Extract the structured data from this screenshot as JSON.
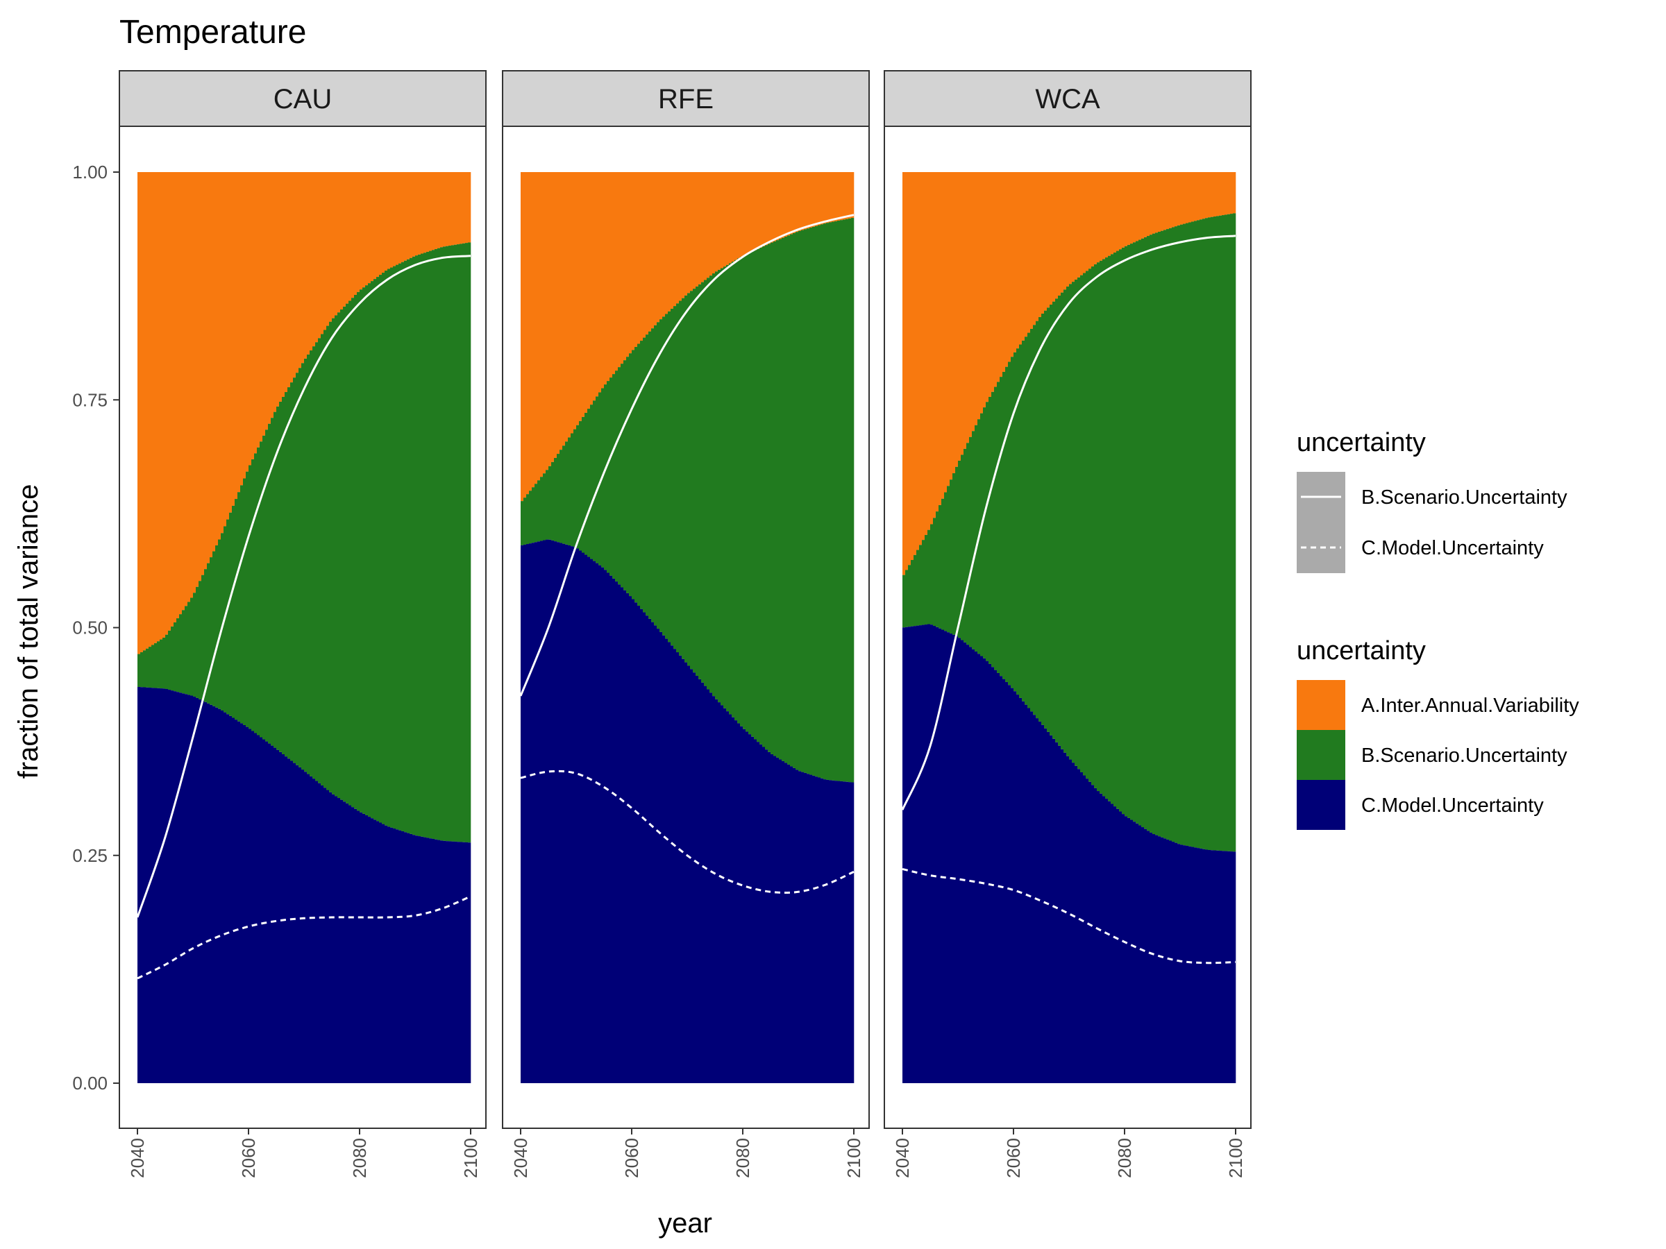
{
  "chart_data": {
    "type": "area",
    "title": "Temperature",
    "xlabel": "year",
    "ylabel": "fraction of total variance",
    "x_ticks": [
      2040,
      2060,
      2080,
      2100
    ],
    "y_ticks": [
      "0.00",
      "0.25",
      "0.50",
      "0.75",
      "1.00"
    ],
    "xlim": [
      2040,
      2100
    ],
    "ylim": [
      0,
      1
    ],
    "grid": false,
    "legend_position": "right",
    "colors": {
      "A.Inter.Annual.Variability": "#f8790f",
      "B.Scenario.Uncertainty": "#217b1f",
      "C.Model.Uncertainty": "#000077",
      "line": "#ffffff",
      "strip": "#d3d3d3",
      "legend_key_line": "#aaaaaa"
    },
    "legend_lines": {
      "title": "uncertainty",
      "items": [
        {
          "label": "B.Scenario.Uncertainty",
          "dash": "solid"
        },
        {
          "label": "C.Model.Uncertainty",
          "dash": "dashed"
        }
      ]
    },
    "legend_fill": {
      "title": "uncertainty",
      "items": [
        {
          "label": "A.Inter.Annual.Variability",
          "color": "#f8790f"
        },
        {
          "label": "B.Scenario.Uncertainty",
          "color": "#217b1f"
        },
        {
          "label": "C.Model.Uncertainty",
          "color": "#000077"
        }
      ]
    },
    "x": [
      2040,
      2045,
      2050,
      2055,
      2060,
      2065,
      2070,
      2075,
      2080,
      2085,
      2090,
      2095,
      2100
    ],
    "panels": [
      {
        "name": "CAU",
        "model_top": [
          0.435,
          0.433,
          0.425,
          0.41,
          0.39,
          0.367,
          0.343,
          0.318,
          0.298,
          0.282,
          0.272,
          0.266,
          0.264
        ],
        "scenario_top": [
          0.47,
          0.49,
          0.535,
          0.6,
          0.675,
          0.74,
          0.793,
          0.838,
          0.87,
          0.893,
          0.908,
          0.918,
          0.923
        ],
        "scenario_line": [
          0.182,
          0.27,
          0.38,
          0.495,
          0.6,
          0.69,
          0.762,
          0.818,
          0.856,
          0.882,
          0.898,
          0.906,
          0.908
        ],
        "model_line": [
          0.115,
          0.13,
          0.148,
          0.162,
          0.172,
          0.178,
          0.181,
          0.182,
          0.182,
          0.182,
          0.184,
          0.192,
          0.205
        ]
      },
      {
        "name": "RFE",
        "model_top": [
          0.59,
          0.597,
          0.588,
          0.565,
          0.533,
          0.497,
          0.46,
          0.423,
          0.39,
          0.362,
          0.343,
          0.333,
          0.33
        ],
        "scenario_top": [
          0.637,
          0.675,
          0.72,
          0.765,
          0.803,
          0.837,
          0.866,
          0.89,
          0.908,
          0.922,
          0.935,
          0.944,
          0.95
        ],
        "scenario_line": [
          0.425,
          0.5,
          0.59,
          0.67,
          0.74,
          0.8,
          0.848,
          0.883,
          0.907,
          0.924,
          0.937,
          0.946,
          0.953
        ],
        "model_line": [
          0.335,
          0.342,
          0.34,
          0.325,
          0.302,
          0.275,
          0.25,
          0.23,
          0.217,
          0.21,
          0.21,
          0.218,
          0.232
        ]
      },
      {
        "name": "WCA",
        "model_top": [
          0.5,
          0.504,
          0.49,
          0.465,
          0.432,
          0.395,
          0.357,
          0.322,
          0.294,
          0.274,
          0.262,
          0.256,
          0.254
        ],
        "scenario_top": [
          0.555,
          0.61,
          0.68,
          0.745,
          0.8,
          0.843,
          0.876,
          0.9,
          0.918,
          0.932,
          0.942,
          0.95,
          0.955
        ],
        "scenario_line": [
          0.3,
          0.37,
          0.5,
          0.63,
          0.735,
          0.808,
          0.856,
          0.885,
          0.903,
          0.915,
          0.923,
          0.928,
          0.93
        ],
        "model_line": [
          0.235,
          0.228,
          0.224,
          0.219,
          0.212,
          0.2,
          0.186,
          0.17,
          0.155,
          0.142,
          0.134,
          0.132,
          0.133
        ]
      }
    ]
  }
}
